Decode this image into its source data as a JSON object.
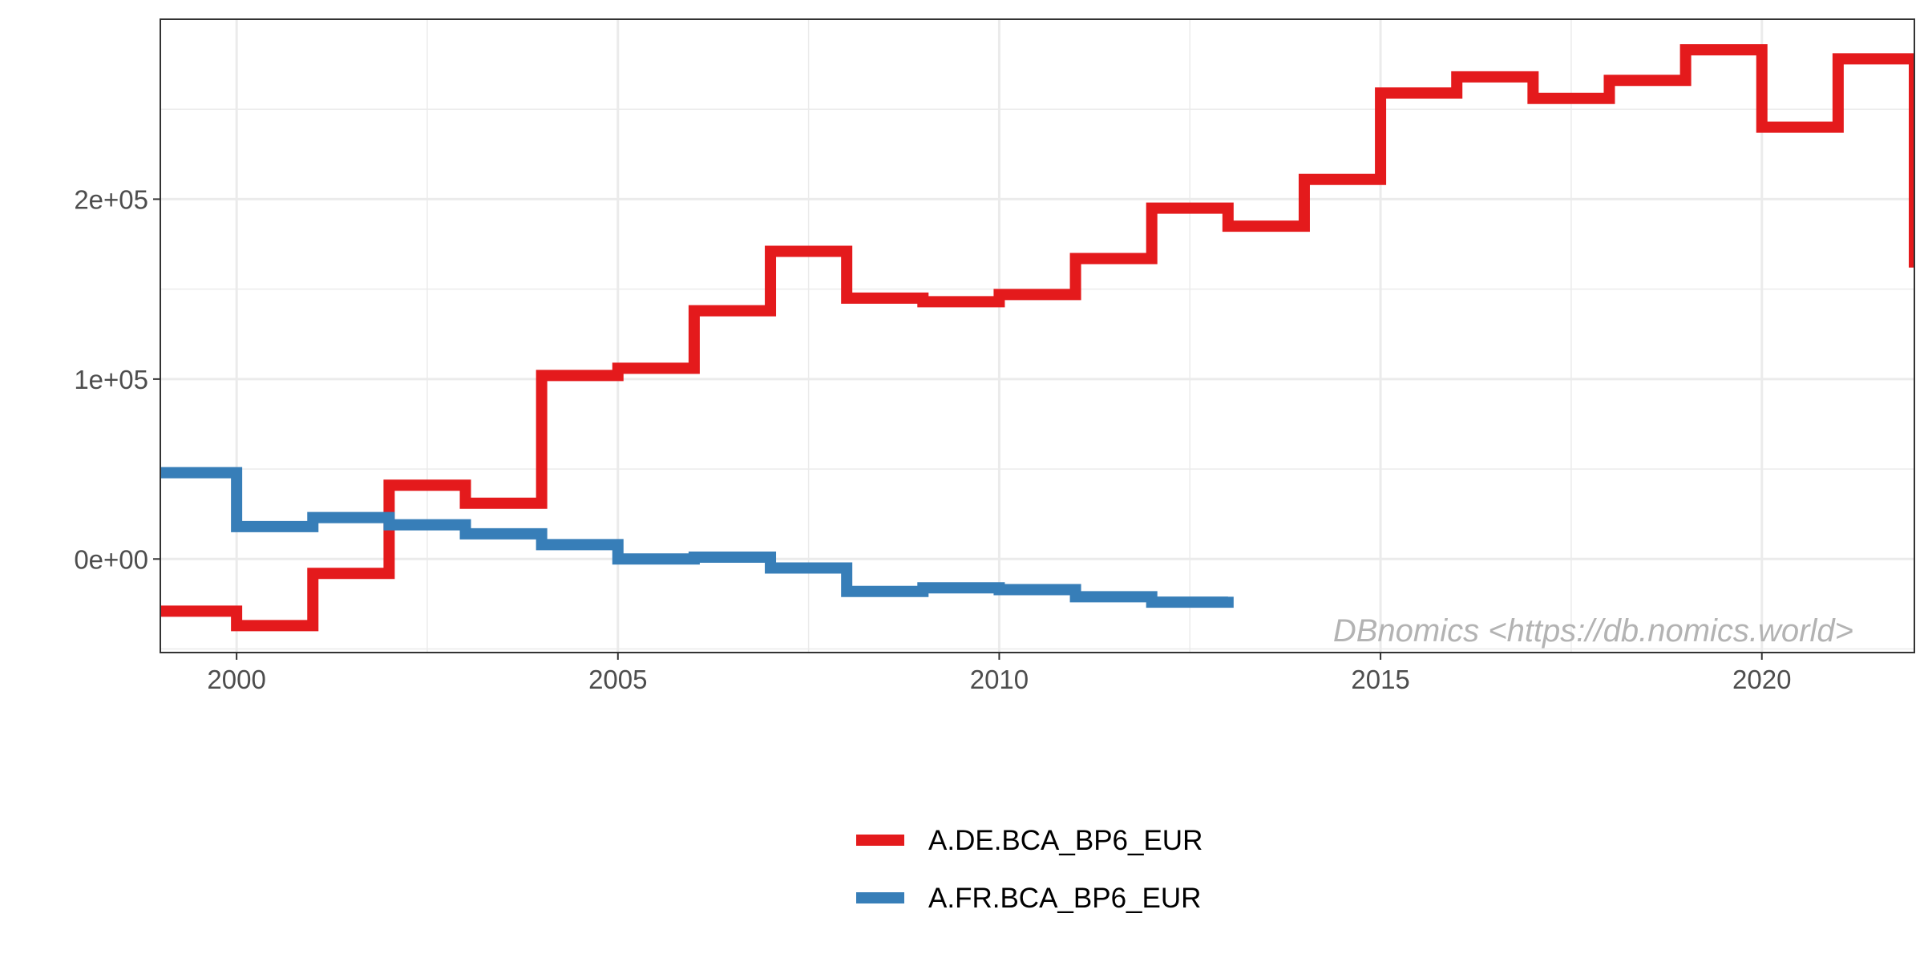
{
  "chart_data": {
    "type": "line",
    "step": true,
    "x": [
      1999,
      2000,
      2001,
      2002,
      2003,
      2004,
      2005,
      2006,
      2007,
      2008,
      2009,
      2010,
      2011,
      2012,
      2013,
      2014,
      2015,
      2016,
      2017,
      2018,
      2019,
      2020,
      2021,
      2022
    ],
    "series": [
      {
        "name": "A.DE.BCA_BP6_EUR",
        "color": "#e41a1c",
        "values": [
          -29000,
          -37000,
          -8000,
          41000,
          31000,
          102000,
          106000,
          138000,
          171000,
          145000,
          143000,
          147000,
          167000,
          195000,
          185000,
          211000,
          259000,
          268000,
          256000,
          266000,
          283000,
          240000,
          278000,
          162000
        ]
      },
      {
        "name": "A.FR.BCA_BP6_EUR",
        "color": "#377eb8",
        "values": [
          48000,
          18000,
          23000,
          19000,
          14000,
          8000,
          0,
          1000,
          -5000,
          -18000,
          -16000,
          -17000,
          -21000,
          -24000,
          -21000,
          null,
          null,
          null,
          null,
          null,
          null,
          null,
          null,
          null
        ]
      }
    ],
    "xlim": [
      1999,
      2022
    ],
    "ylim": [
      -52000,
      300000
    ],
    "xticks": [
      2000,
      2005,
      2010,
      2015,
      2020
    ],
    "yticks": [
      0,
      100000,
      200000
    ],
    "ytick_labels": [
      "0e+00",
      "1e+05",
      "2e+05"
    ],
    "xminor": [
      2002.5,
      2007.5,
      2012.5,
      2017.5
    ],
    "yminor": [
      -50000,
      50000,
      150000,
      250000
    ],
    "grid": true,
    "legend_position": "bottom",
    "title": "",
    "xlabel": "",
    "ylabel": "",
    "watermark": "DBnomics <https://db.nomics.world>"
  }
}
